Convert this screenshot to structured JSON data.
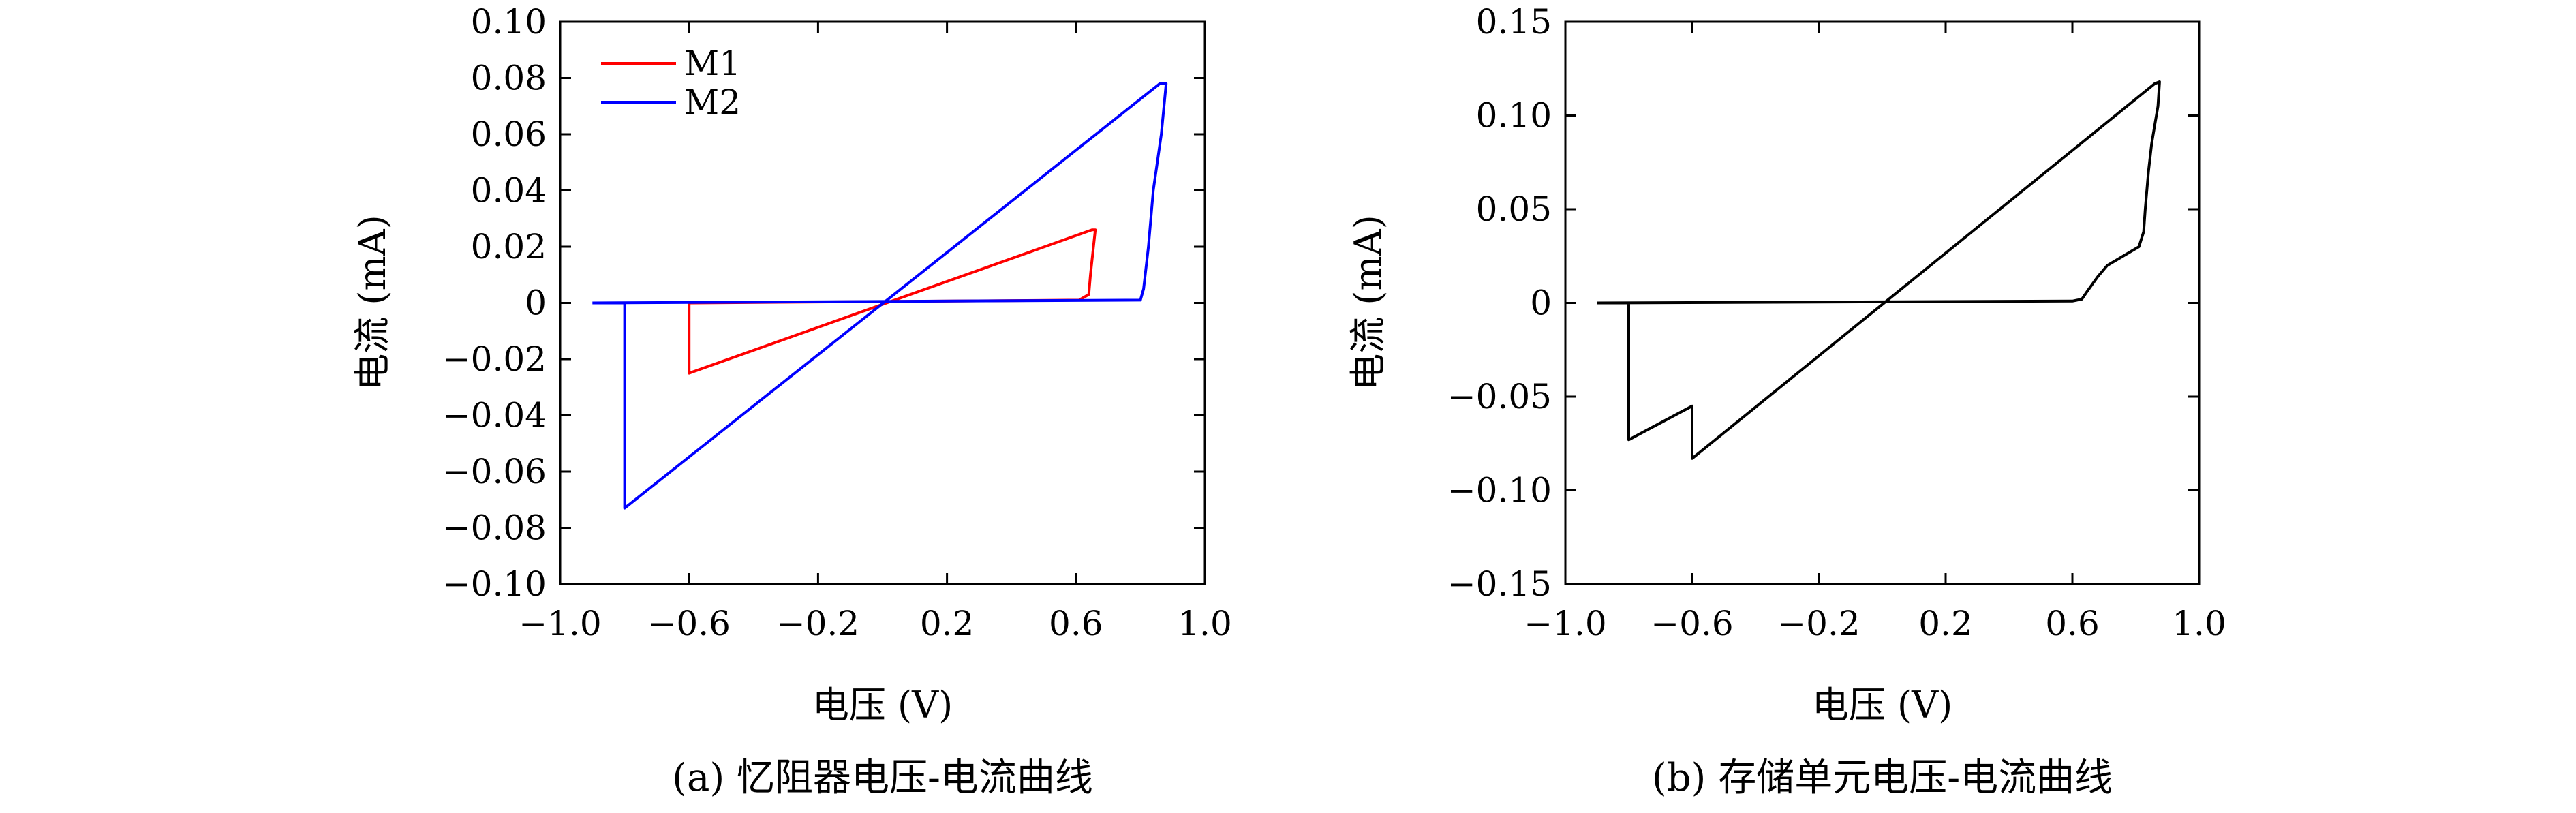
{
  "chart_data": [
    {
      "type": "line",
      "caption": "(a) 忆阻器电压-电流曲线",
      "xlabel": "电压 (V)",
      "ylabel": "电流 (mA)",
      "xlim": [
        -1.0,
        1.0
      ],
      "ylim": [
        -0.1,
        0.1
      ],
      "xticks": [
        -1.0,
        -0.6,
        -0.2,
        0.2,
        0.6,
        1.0
      ],
      "xtick_labels": [
        "−1.0",
        "−0.6",
        "−0.2",
        "0.2",
        "0.6",
        "1.0"
      ],
      "yticks": [
        0.1,
        0.08,
        0.06,
        0.04,
        0.02,
        0,
        -0.02,
        -0.04,
        -0.06,
        -0.08,
        -0.1
      ],
      "ytick_labels": [
        "0.10",
        "0.08",
        "0.06",
        "0.04",
        "0.02",
        "0",
        "−0.02",
        "−0.04",
        "−0.06",
        "−0.08",
        "−0.10"
      ],
      "grid": false,
      "legend_position": "top-left",
      "series": [
        {
          "name": "M1",
          "color": "#ff0000",
          "points": [
            [
              -0.6,
              0
            ],
            [
              -0.6,
              -0.025
            ],
            [
              0.65,
              0.026
            ],
            [
              0.66,
              0.026
            ],
            [
              0.645,
              0.01
            ],
            [
              0.64,
              0.003
            ],
            [
              0.61,
              0.001
            ],
            [
              -0.6,
              0
            ]
          ]
        },
        {
          "name": "M2",
          "color": "#0000ff",
          "points": [
            [
              -0.9,
              0
            ],
            [
              -0.8,
              0
            ],
            [
              -0.8,
              -0.073
            ],
            [
              0.86,
              0.078
            ],
            [
              0.88,
              0.078
            ],
            [
              0.865,
              0.06
            ],
            [
              0.84,
              0.04
            ],
            [
              0.825,
              0.02
            ],
            [
              0.81,
              0.005
            ],
            [
              0.8,
              0.001
            ],
            [
              -0.9,
              0
            ]
          ]
        }
      ]
    },
    {
      "type": "line",
      "caption": "(b) 存储单元电压-电流曲线",
      "xlabel": "电压 (V)",
      "ylabel": "电流 (mA)",
      "xlim": [
        -1.0,
        1.0
      ],
      "ylim": [
        -0.15,
        0.15
      ],
      "xticks": [
        -1.0,
        -0.6,
        -0.2,
        0.2,
        0.6,
        1.0
      ],
      "xtick_labels": [
        "−1.0",
        "−0.6",
        "−0.2",
        "0.2",
        "0.6",
        "1.0"
      ],
      "yticks": [
        0.15,
        0.1,
        0.05,
        0,
        -0.05,
        -0.1,
        -0.15
      ],
      "ytick_labels": [
        "0.15",
        "0.10",
        "0.05",
        "0",
        "−0.05",
        "−0.10",
        "−0.15"
      ],
      "grid": false,
      "series": [
        {
          "color": "#000000",
          "points": [
            [
              -0.9,
              0
            ],
            [
              -0.8,
              0
            ],
            [
              -0.8,
              -0.073
            ],
            [
              -0.6,
              -0.055
            ],
            [
              -0.6,
              -0.083
            ],
            [
              0.86,
              0.117
            ],
            [
              0.875,
              0.118
            ],
            [
              0.87,
              0.105
            ],
            [
              0.86,
              0.095
            ],
            [
              0.85,
              0.085
            ],
            [
              0.84,
              0.07
            ],
            [
              0.83,
              0.05
            ],
            [
              0.825,
              0.038
            ],
            [
              0.81,
              0.03
            ],
            [
              0.75,
              0.024
            ],
            [
              0.71,
              0.02
            ],
            [
              0.68,
              0.014
            ],
            [
              0.65,
              0.007
            ],
            [
              0.63,
              0.002
            ],
            [
              0.6,
              0.001
            ],
            [
              -0.9,
              0
            ]
          ]
        }
      ]
    }
  ]
}
